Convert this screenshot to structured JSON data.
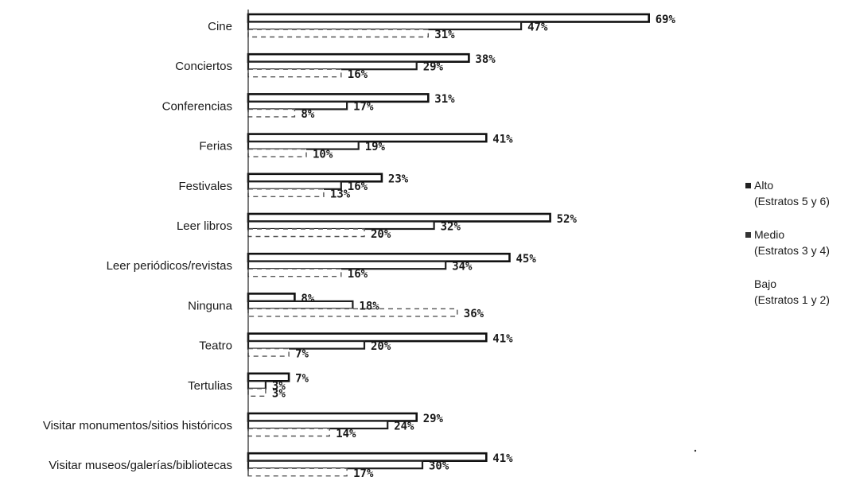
{
  "chart_data": {
    "type": "bar",
    "orientation": "horizontal",
    "categories": [
      "Cine",
      "Conciertos",
      "Conferencias",
      "Ferias",
      "Festivales",
      "Leer libros",
      "Leer periódicos/revistas",
      "Ninguna",
      "Teatro",
      "Tertulias",
      "Visitar monumentos/sitios históricos",
      "Visitar museos/galerías/bibliotecas"
    ],
    "series": [
      {
        "name": "Alto (Estratos 5 y 6)",
        "values": [
          69,
          38,
          31,
          41,
          23,
          52,
          45,
          8,
          41,
          7,
          29,
          41
        ],
        "labels": [
          "69%",
          "38%",
          "31%",
          "41%",
          "23%",
          "52%",
          "45%",
          "8%",
          "41%",
          "7%",
          "29%",
          "41%"
        ]
      },
      {
        "name": "Medio (Estratos 3 y 4)",
        "values": [
          47,
          29,
          17,
          19,
          16,
          32,
          34,
          18,
          20,
          3,
          24,
          30
        ],
        "labels": [
          "47%",
          "29%",
          "17%",
          "19%",
          "16%",
          "32%",
          "34%",
          "18%",
          "20%",
          "3%",
          "24%",
          "30%"
        ]
      },
      {
        "name": "Bajo (Estratos 1 y 2)",
        "values": [
          31,
          16,
          8,
          10,
          13,
          20,
          16,
          36,
          7,
          3,
          14,
          17
        ],
        "labels": [
          "31%",
          "16%",
          "8%",
          "10%",
          "13%",
          "20%",
          "16%",
          "36%",
          "7%",
          "3%",
          "14%",
          "17%"
        ]
      }
    ],
    "legend": {
      "position": "right",
      "items": [
        {
          "line1": "Alto",
          "line2": "(Estratos 5 y 6)"
        },
        {
          "line1": "Medio",
          "line2": "(Estratos 3 y 4)"
        },
        {
          "line1": "Bajo",
          "line2": "(Estratos 1 y 2)"
        }
      ]
    },
    "xlim": [
      0,
      69
    ],
    "grid": false,
    "title": "",
    "xlabel": "",
    "ylabel": ""
  }
}
